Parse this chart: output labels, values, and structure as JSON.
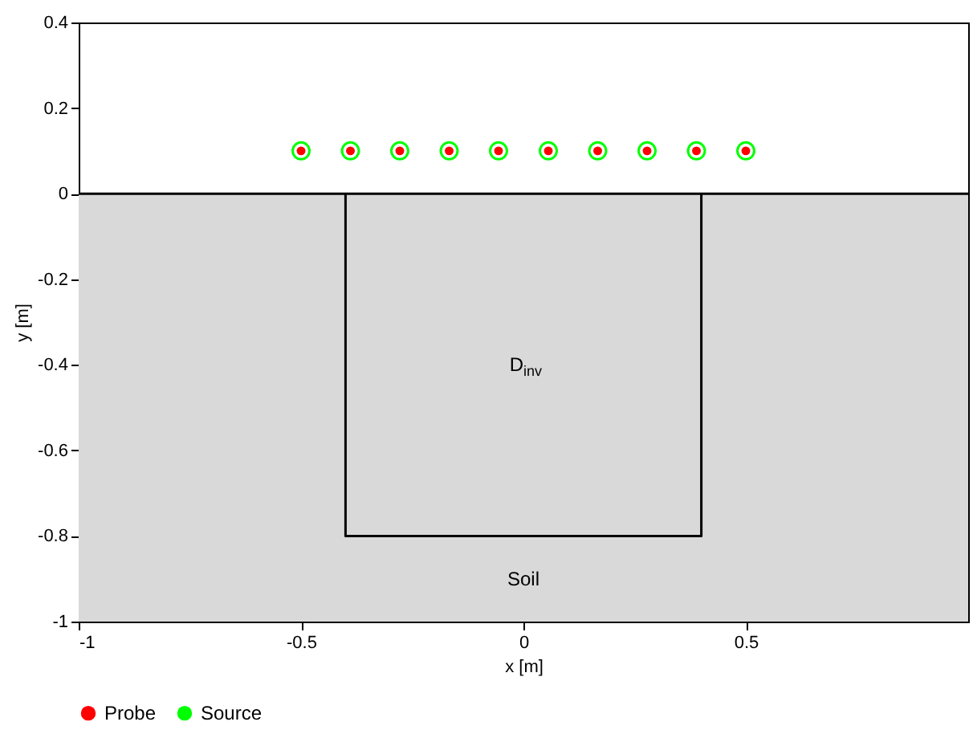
{
  "chart_data": {
    "type": "scatter",
    "xlabel": "x [m]",
    "ylabel": "y [m]",
    "xlim": [
      -1,
      1
    ],
    "xticks": [
      -1,
      -0.5,
      0,
      0.5
    ],
    "ylim": [
      -1,
      0.4
    ],
    "yticks": [
      -1,
      -0.8,
      -0.6,
      -0.4,
      -0.2,
      0,
      0.2,
      0.4
    ],
    "grid": false,
    "legend": "bottom",
    "series": [
      {
        "name": "Probe",
        "color": "#ff0000",
        "marker": "circle",
        "x": [
          -0.5,
          -0.389,
          -0.278,
          -0.167,
          -0.056,
          0.056,
          0.167,
          0.278,
          0.389,
          0.5
        ],
        "values": [
          0.1,
          0.1,
          0.1,
          0.1,
          0.1,
          0.1,
          0.1,
          0.1,
          0.1,
          0.1
        ]
      },
      {
        "name": "Source",
        "color": "#00ff00",
        "marker": "circle",
        "x": [
          -0.5,
          -0.389,
          -0.278,
          -0.167,
          -0.056,
          0.056,
          0.167,
          0.278,
          0.389,
          0.5
        ],
        "values": [
          0.1,
          0.1,
          0.1,
          0.1,
          0.1,
          0.1,
          0.1,
          0.1,
          0.1,
          0.1
        ]
      },
      {
        "type": "line",
        "color": "#000000",
        "marker": "none",
        "x": [
          -0.4,
          -0.4,
          0.4,
          0.4
        ],
        "values": [
          0,
          -0.8,
          -0.8,
          0
        ]
      }
    ],
    "ref_lines": [
      {
        "axis": "y",
        "value": 0
      }
    ],
    "bands": [
      {
        "axis": "y",
        "from": -1,
        "to": 0,
        "label": "Soil",
        "color": "#d9d9d9"
      }
    ],
    "annotations": [
      "D$_{inv}$"
    ]
  }
}
